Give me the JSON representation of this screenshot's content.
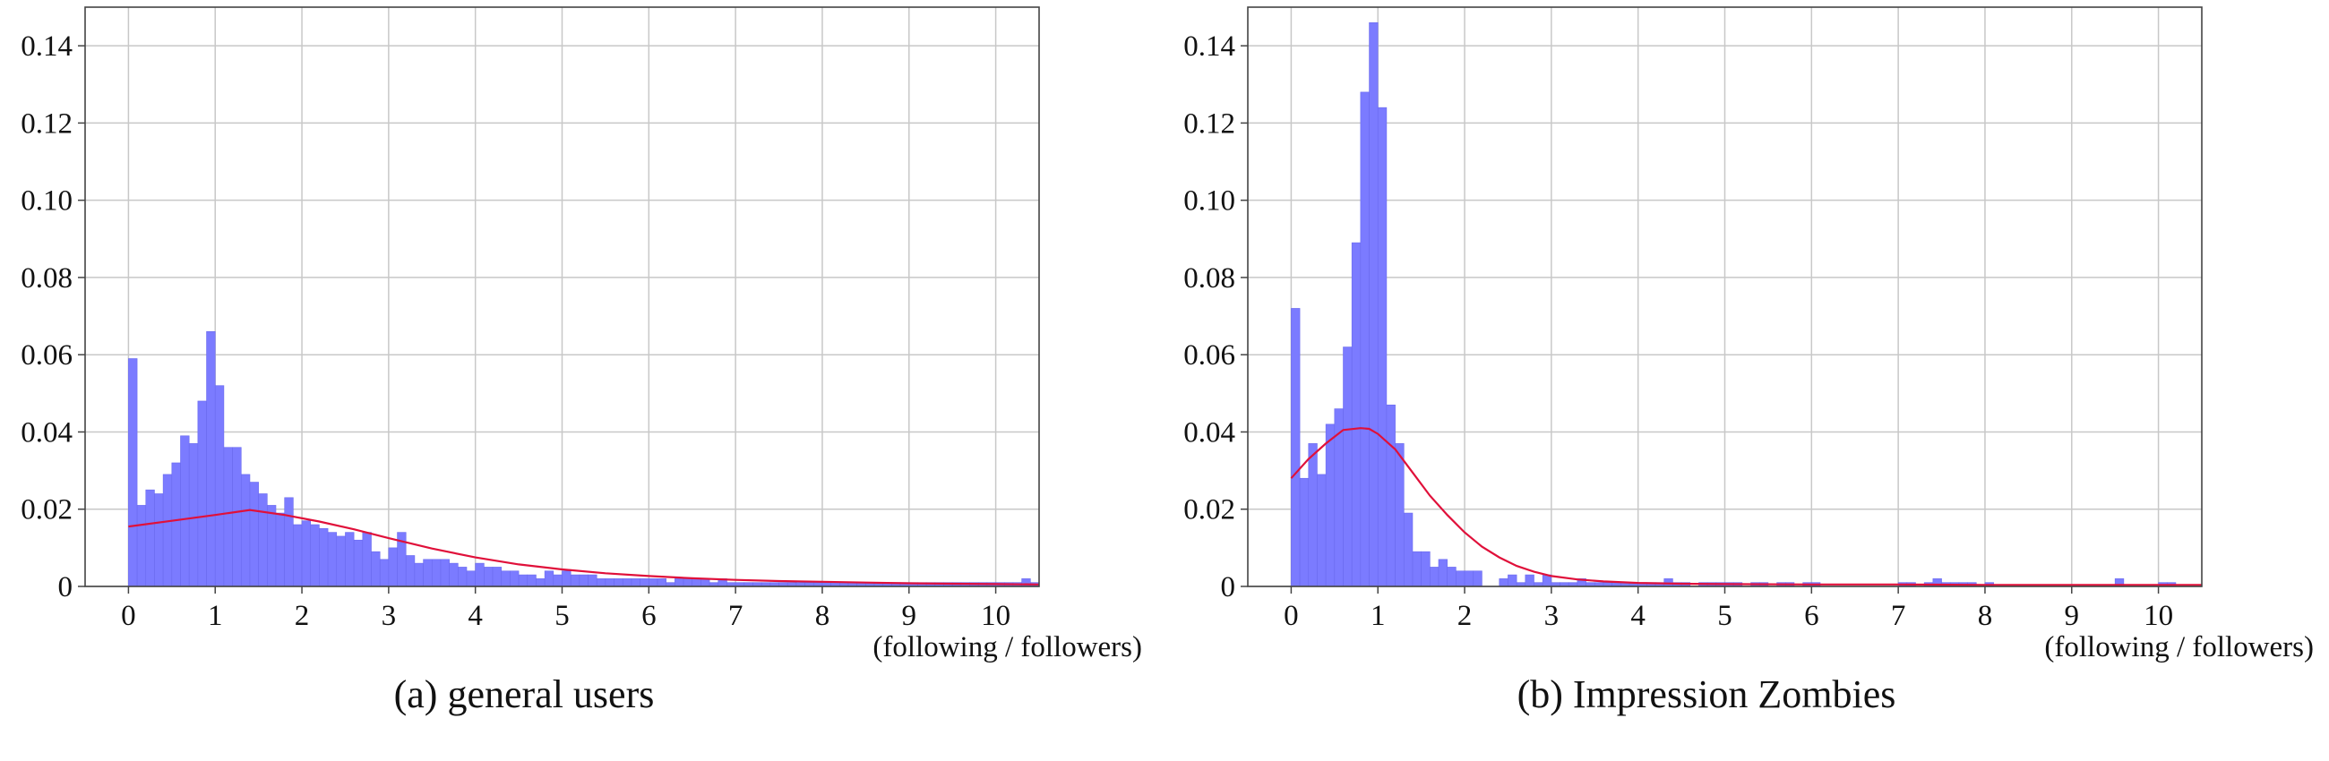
{
  "colors": {
    "bar_fill": "#7b7bff",
    "bar_edge": "#6a6aee",
    "fit_line": "#e0103a",
    "grid": "#c8c8c8",
    "frame": "#444444"
  },
  "chart_data": [
    {
      "type": "bar",
      "caption": "(a) general users",
      "xlabel": "(following / followers)",
      "xlim": [
        -0.5,
        10.5
      ],
      "ylim": [
        0,
        0.15
      ],
      "xticks": [
        0,
        1,
        2,
        3,
        4,
        5,
        6,
        7,
        8,
        9,
        10
      ],
      "yticks": [
        0,
        0.02,
        0.04,
        0.06,
        0.08,
        0.1,
        0.12,
        0.14
      ],
      "ytick_labels": [
        "0",
        "0.02",
        "0.04",
        "0.06",
        "0.08",
        "0.10",
        "0.12",
        "0.14"
      ],
      "grid": true,
      "bin_start": 0,
      "bin_width": 0.1,
      "histogram": [
        0.059,
        0.021,
        0.025,
        0.024,
        0.029,
        0.032,
        0.039,
        0.037,
        0.048,
        0.066,
        0.052,
        0.036,
        0.036,
        0.029,
        0.027,
        0.024,
        0.021,
        0.019,
        0.023,
        0.016,
        0.017,
        0.016,
        0.015,
        0.014,
        0.013,
        0.014,
        0.012,
        0.014,
        0.009,
        0.007,
        0.01,
        0.014,
        0.008,
        0.006,
        0.007,
        0.007,
        0.007,
        0.006,
        0.005,
        0.004,
        0.006,
        0.005,
        0.005,
        0.004,
        0.004,
        0.003,
        0.003,
        0.002,
        0.004,
        0.003,
        0.004,
        0.003,
        0.003,
        0.003,
        0.002,
        0.002,
        0.002,
        0.002,
        0.002,
        0.002,
        0.002,
        0.002,
        0.001,
        0.002,
        0.002,
        0.002,
        0.002,
        0.001,
        0.002,
        0.001,
        0.001,
        0.001,
        0.001,
        0.001,
        0.001,
        0.001,
        0.001,
        0.001,
        0.001,
        0.001,
        0.001,
        0.001,
        0.001,
        0.001,
        0.001,
        0.001,
        0.001,
        0.001,
        0.001,
        0.001,
        0.001,
        0.001,
        0.001,
        0.001,
        0.001,
        0.001,
        0.001,
        0.001,
        0.001,
        0.001,
        0.001,
        0.001,
        0.001,
        0.002,
        0.001
      ],
      "fit_curve": {
        "x": [
          0,
          0.5,
          1.0,
          1.4,
          1.8,
          2.2,
          2.6,
          3.0,
          3.5,
          4.0,
          4.5,
          5.0,
          5.5,
          6.0,
          6.5,
          7.0,
          7.5,
          8.0,
          8.5,
          9.0,
          9.5,
          10.0,
          10.5
        ],
        "y": [
          0.0155,
          0.017,
          0.0185,
          0.0198,
          0.0185,
          0.0168,
          0.0148,
          0.0125,
          0.0098,
          0.0075,
          0.0057,
          0.0044,
          0.0034,
          0.0027,
          0.0021,
          0.0017,
          0.0014,
          0.0012,
          0.001,
          0.0008,
          0.0007,
          0.0006,
          0.0005
        ]
      }
    },
    {
      "type": "bar",
      "caption": "(b) Impression Zombies",
      "xlabel": "(following / followers)",
      "xlim": [
        -0.5,
        10.5
      ],
      "ylim": [
        0,
        0.15
      ],
      "xticks": [
        0,
        1,
        2,
        3,
        4,
        5,
        6,
        7,
        8,
        9,
        10
      ],
      "yticks": [
        0,
        0.02,
        0.04,
        0.06,
        0.08,
        0.1,
        0.12,
        0.14
      ],
      "ytick_labels": [
        "0",
        "0.02",
        "0.04",
        "0.06",
        "0.08",
        "0.10",
        "0.12",
        "0.14"
      ],
      "grid": true,
      "bin_start": 0,
      "bin_width": 0.1,
      "histogram": [
        0.072,
        0.028,
        0.037,
        0.029,
        0.042,
        0.046,
        0.062,
        0.089,
        0.128,
        0.146,
        0.124,
        0.047,
        0.037,
        0.019,
        0.009,
        0.009,
        0.005,
        0.007,
        0.005,
        0.004,
        0.004,
        0.004,
        0,
        0,
        0.002,
        0.003,
        0.001,
        0.003,
        0.001,
        0.003,
        0.001,
        0.001,
        0.001,
        0.002,
        0.001,
        0.001,
        0.001,
        0.001,
        0.001,
        0.001,
        0.001,
        0.001,
        0.001,
        0.002,
        0.001,
        0.001,
        0,
        0.001,
        0.001,
        0.001,
        0.001,
        0.001,
        0,
        0.001,
        0.001,
        0,
        0.001,
        0.001,
        0,
        0.001,
        0.001,
        0,
        0,
        0,
        0,
        0,
        0,
        0,
        0,
        0,
        0.001,
        0.001,
        0,
        0.001,
        0.002,
        0.001,
        0.001,
        0.001,
        0.001,
        0,
        0.001,
        0,
        0,
        0,
        0,
        0,
        0,
        0,
        0,
        0,
        0,
        0,
        0,
        0,
        0,
        0.002,
        0,
        0,
        0,
        0,
        0.001,
        0.001,
        0,
        0,
        0
      ],
      "fit_curve": {
        "x": [
          0,
          0.2,
          0.4,
          0.6,
          0.8,
          0.9,
          1.0,
          1.2,
          1.4,
          1.6,
          1.8,
          2.0,
          2.2,
          2.4,
          2.6,
          2.8,
          3.0,
          3.3,
          3.6,
          4.0,
          4.5,
          5.0,
          6.0,
          7.0,
          8.0,
          9.0,
          10.0,
          10.5
        ],
        "y": [
          0.028,
          0.033,
          0.037,
          0.0405,
          0.041,
          0.0408,
          0.0395,
          0.0355,
          0.0295,
          0.0235,
          0.0185,
          0.014,
          0.0103,
          0.0075,
          0.0053,
          0.0038,
          0.0027,
          0.0018,
          0.0013,
          0.0009,
          0.0007,
          0.0006,
          0.0005,
          0.0005,
          0.0004,
          0.0004,
          0.0004,
          0.0004
        ]
      }
    }
  ]
}
